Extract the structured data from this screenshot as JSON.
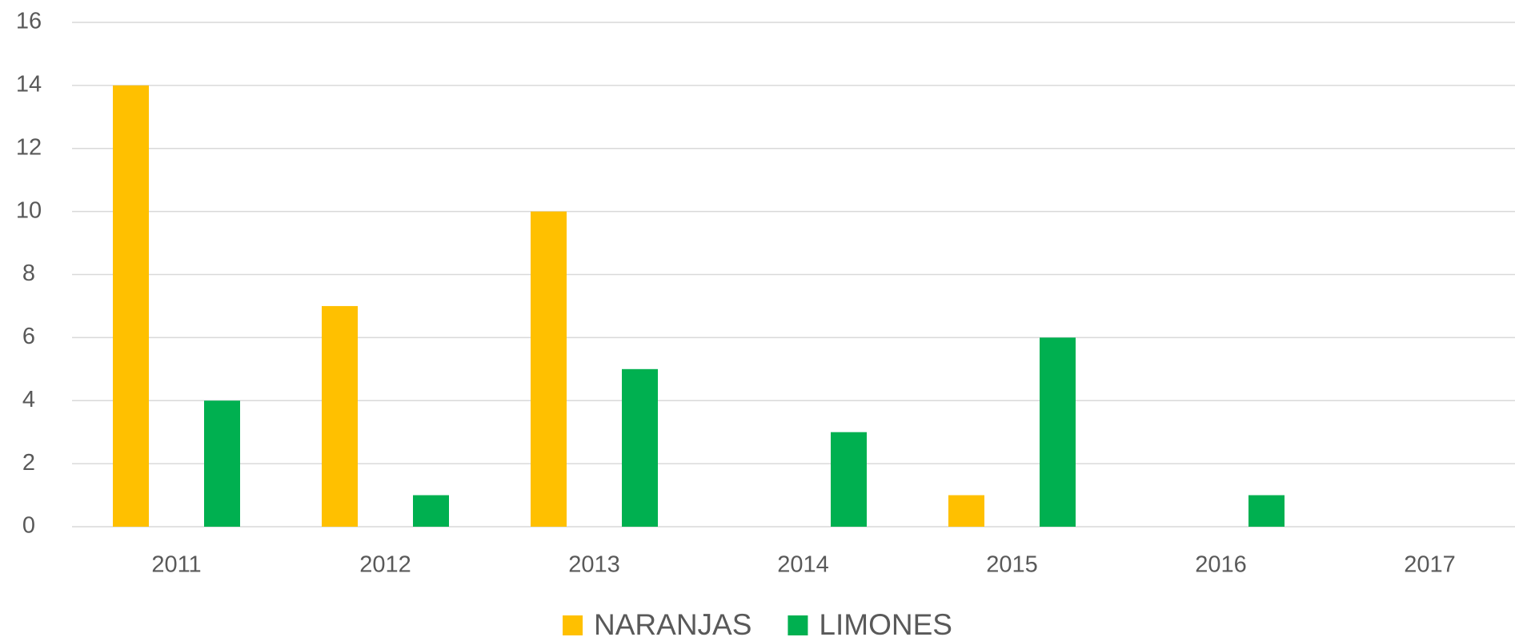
{
  "chart_data": {
    "type": "bar",
    "categories": [
      "2011",
      "2012",
      "2013",
      "2014",
      "2015",
      "2016",
      "2017"
    ],
    "series": [
      {
        "name": "NARANJAS",
        "color": "#ffc000",
        "values": [
          14,
          7,
          10,
          0,
          1,
          0,
          0
        ]
      },
      {
        "name": "LIMONES",
        "color": "#00b050",
        "values": [
          4,
          1,
          5,
          3,
          6,
          1,
          0
        ]
      }
    ],
    "ylim": [
      0,
      16
    ],
    "yticks": [
      0,
      2,
      4,
      6,
      8,
      10,
      12,
      14,
      16
    ],
    "grid": true,
    "legend": "bottom"
  }
}
